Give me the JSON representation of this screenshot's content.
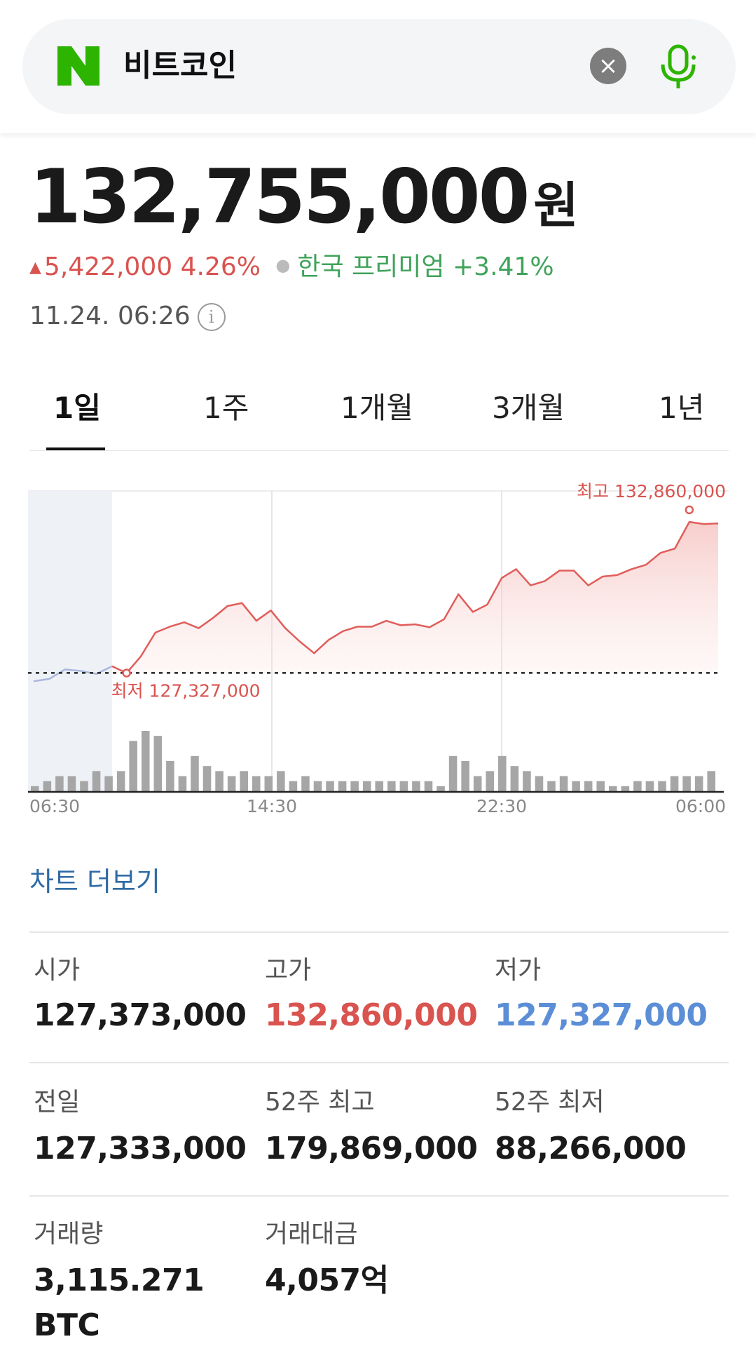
{
  "search": {
    "query": "비트코인"
  },
  "price": {
    "value": "132,755,000",
    "unit": "원"
  },
  "change": {
    "amount": "5,422,000",
    "percent": "4.26%",
    "premium_label": "한국 프리미엄",
    "premium_value": "+3.41%"
  },
  "timestamp": "11.24. 06:26",
  "tabs": [
    "1일",
    "1주",
    "1개월",
    "3개월",
    "1년"
  ],
  "chart_data": {
    "type": "line",
    "x_ticks": [
      "06:30",
      "14:30",
      "22:30",
      "06:00"
    ],
    "high_label": "최고 132,860,000",
    "low_label": "최저 127,327,000",
    "high": 132860000,
    "low": 127327000,
    "ylim": [
      126700000,
      133500000
    ],
    "prev_close": 127333000,
    "prev_series": [
      127050000,
      127130000,
      127450000,
      127400000,
      127300000,
      127560000
    ],
    "series": [
      127560000,
      127327000,
      127900000,
      128700000,
      128900000,
      129050000,
      128850000,
      129200000,
      129600000,
      129700000,
      129100000,
      129450000,
      128850000,
      128400000,
      128000000,
      128450000,
      128750000,
      128900000,
      128900000,
      129100000,
      128950000,
      128980000,
      128880000,
      129150000,
      130000000,
      129400000,
      129650000,
      130550000,
      130850000,
      130300000,
      130450000,
      130800000,
      130800000,
      130300000,
      130600000,
      130650000,
      130850000,
      131000000,
      131400000,
      131550000,
      132450000,
      132380000,
      132400000
    ],
    "volume": [
      1,
      2,
      3,
      3,
      2,
      4,
      3,
      4,
      10,
      12,
      11,
      6,
      3,
      7,
      5,
      4,
      3,
      4,
      3,
      3,
      4,
      2,
      3,
      2,
      2,
      2,
      2,
      2,
      2,
      2,
      2,
      2,
      2,
      1,
      7,
      6,
      3,
      4,
      7,
      5,
      4,
      3,
      2,
      3,
      2,
      2,
      2,
      1,
      1,
      2,
      2,
      2,
      3,
      3,
      3,
      4
    ]
  },
  "more_chart": "차트 더보기",
  "stats": [
    {
      "label": "시가",
      "value": "127,373,000"
    },
    {
      "label": "고가",
      "value": "132,860,000"
    },
    {
      "label": "저가",
      "value": "127,327,000"
    },
    {
      "label": "전일",
      "value": "127,333,000"
    },
    {
      "label": "52주 최고",
      "value": "179,869,000"
    },
    {
      "label": "52주 최저",
      "value": "88,266,000"
    },
    {
      "label": "거래량",
      "value": "3,115.271",
      "value2": "BTC"
    },
    {
      "label": "거래대금",
      "value": "4,057억"
    }
  ],
  "colors": {
    "up": "#d9534f",
    "down": "#5b8ed6",
    "brand": "#2db400",
    "link": "#2f6ba5"
  }
}
